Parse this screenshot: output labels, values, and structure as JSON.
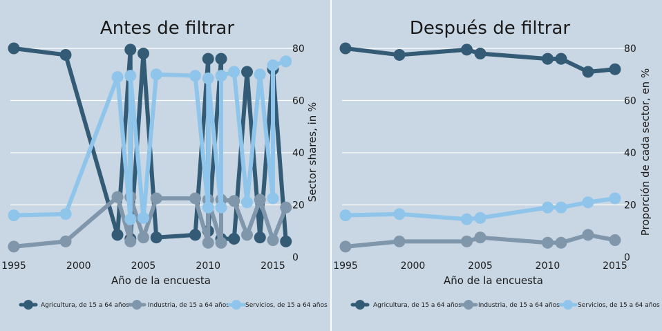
{
  "colors": {
    "panel_bg": "#c9d6e3",
    "grid": "#ffffff",
    "agricultura": "#335b75",
    "industria": "#7f96ab",
    "servicios": "#8fc5ea",
    "divider": "#ffffff"
  },
  "legend": [
    {
      "key": "agricultura",
      "label": "Agricultura, de 15 a 64 años"
    },
    {
      "key": "industria",
      "label": "Industria, de 15 a 64 años"
    },
    {
      "key": "servicios",
      "label": "Servicios, de 15 a 64 años"
    }
  ],
  "chart_data": [
    {
      "type": "line",
      "title": "Antes de filtrar",
      "xlabel": "Año de la encuesta",
      "ylabel": "Sector shares, in %",
      "xlim": [
        1995,
        2016.5
      ],
      "ylim": [
        0,
        85
      ],
      "xticks": [
        1995,
        2000,
        2005,
        2010,
        2015
      ],
      "yticks": [
        0,
        20,
        40,
        60,
        80
      ],
      "grid": true,
      "legend_position": "bottom",
      "series": [
        {
          "key": "agricultura",
          "name": "Agricultura, de 15 a 64 años",
          "x": [
            1995,
            1999,
            2003,
            2004,
            2004,
            2005,
            2006,
            2009,
            2010,
            2010,
            2011,
            2011,
            2012,
            2013,
            2014,
            2015,
            2016
          ],
          "y": [
            80,
            77.5,
            8.5,
            79.5,
            7,
            78,
            7.5,
            8.5,
            76,
            10,
            76,
            7,
            7,
            71,
            7.5,
            72,
            6
          ]
        },
        {
          "key": "industria",
          "name": "Industria, de 15 a 64 años",
          "x": [
            1995,
            1999,
            2003,
            2004,
            2004,
            2005,
            2006,
            2009,
            2010,
            2010,
            2011,
            2011,
            2012,
            2013,
            2014,
            2015,
            2016
          ],
          "y": [
            4,
            6,
            23,
            6,
            23,
            7.5,
            22.5,
            22.5,
            5.5,
            22,
            5.5,
            22,
            21.5,
            8.5,
            22,
            6.5,
            19
          ]
        },
        {
          "key": "servicios",
          "name": "Servicios, de 15 a 64 años",
          "x": [
            1995,
            1999,
            2003,
            2004,
            2004,
            2005,
            2006,
            2009,
            2010,
            2010,
            2011,
            2011,
            2012,
            2013,
            2014,
            2015,
            2015,
            2016
          ],
          "y": [
            16,
            16.5,
            69,
            14.5,
            69.5,
            15,
            70,
            69.5,
            19,
            68.5,
            19,
            69.5,
            71,
            21,
            70,
            22.5,
            73.5,
            75
          ]
        }
      ]
    },
    {
      "type": "line",
      "title": "Después de filtrar",
      "xlabel": "Año de la encuesta",
      "ylabel": "Proporción de cada sector, en %",
      "xlim": [
        1995,
        2015
      ],
      "ylim": [
        0,
        85
      ],
      "xticks": [
        1995,
        2000,
        2005,
        2010,
        2015
      ],
      "yticks": [
        0,
        20,
        40,
        60,
        80
      ],
      "grid": true,
      "legend_position": "bottom",
      "series": [
        {
          "key": "agricultura",
          "name": "Agricultura, de 15 a 64 años",
          "x": [
            1995,
            1999,
            2004,
            2005,
            2010,
            2011,
            2013,
            2015
          ],
          "y": [
            80,
            77.5,
            79.5,
            78,
            76,
            76,
            71,
            72
          ]
        },
        {
          "key": "industria",
          "name": "Industria, de 15 a 64 años",
          "x": [
            1995,
            1999,
            2004,
            2005,
            2010,
            2011,
            2013,
            2015
          ],
          "y": [
            4,
            6,
            6,
            7.5,
            5.5,
            5.5,
            8.5,
            6.5
          ]
        },
        {
          "key": "servicios",
          "name": "Servicios, de 15 a 64 años",
          "x": [
            1995,
            1999,
            2004,
            2005,
            2010,
            2011,
            2013,
            2015
          ],
          "y": [
            16,
            16.5,
            14.5,
            15,
            19,
            19,
            21,
            22.5
          ]
        }
      ]
    }
  ]
}
